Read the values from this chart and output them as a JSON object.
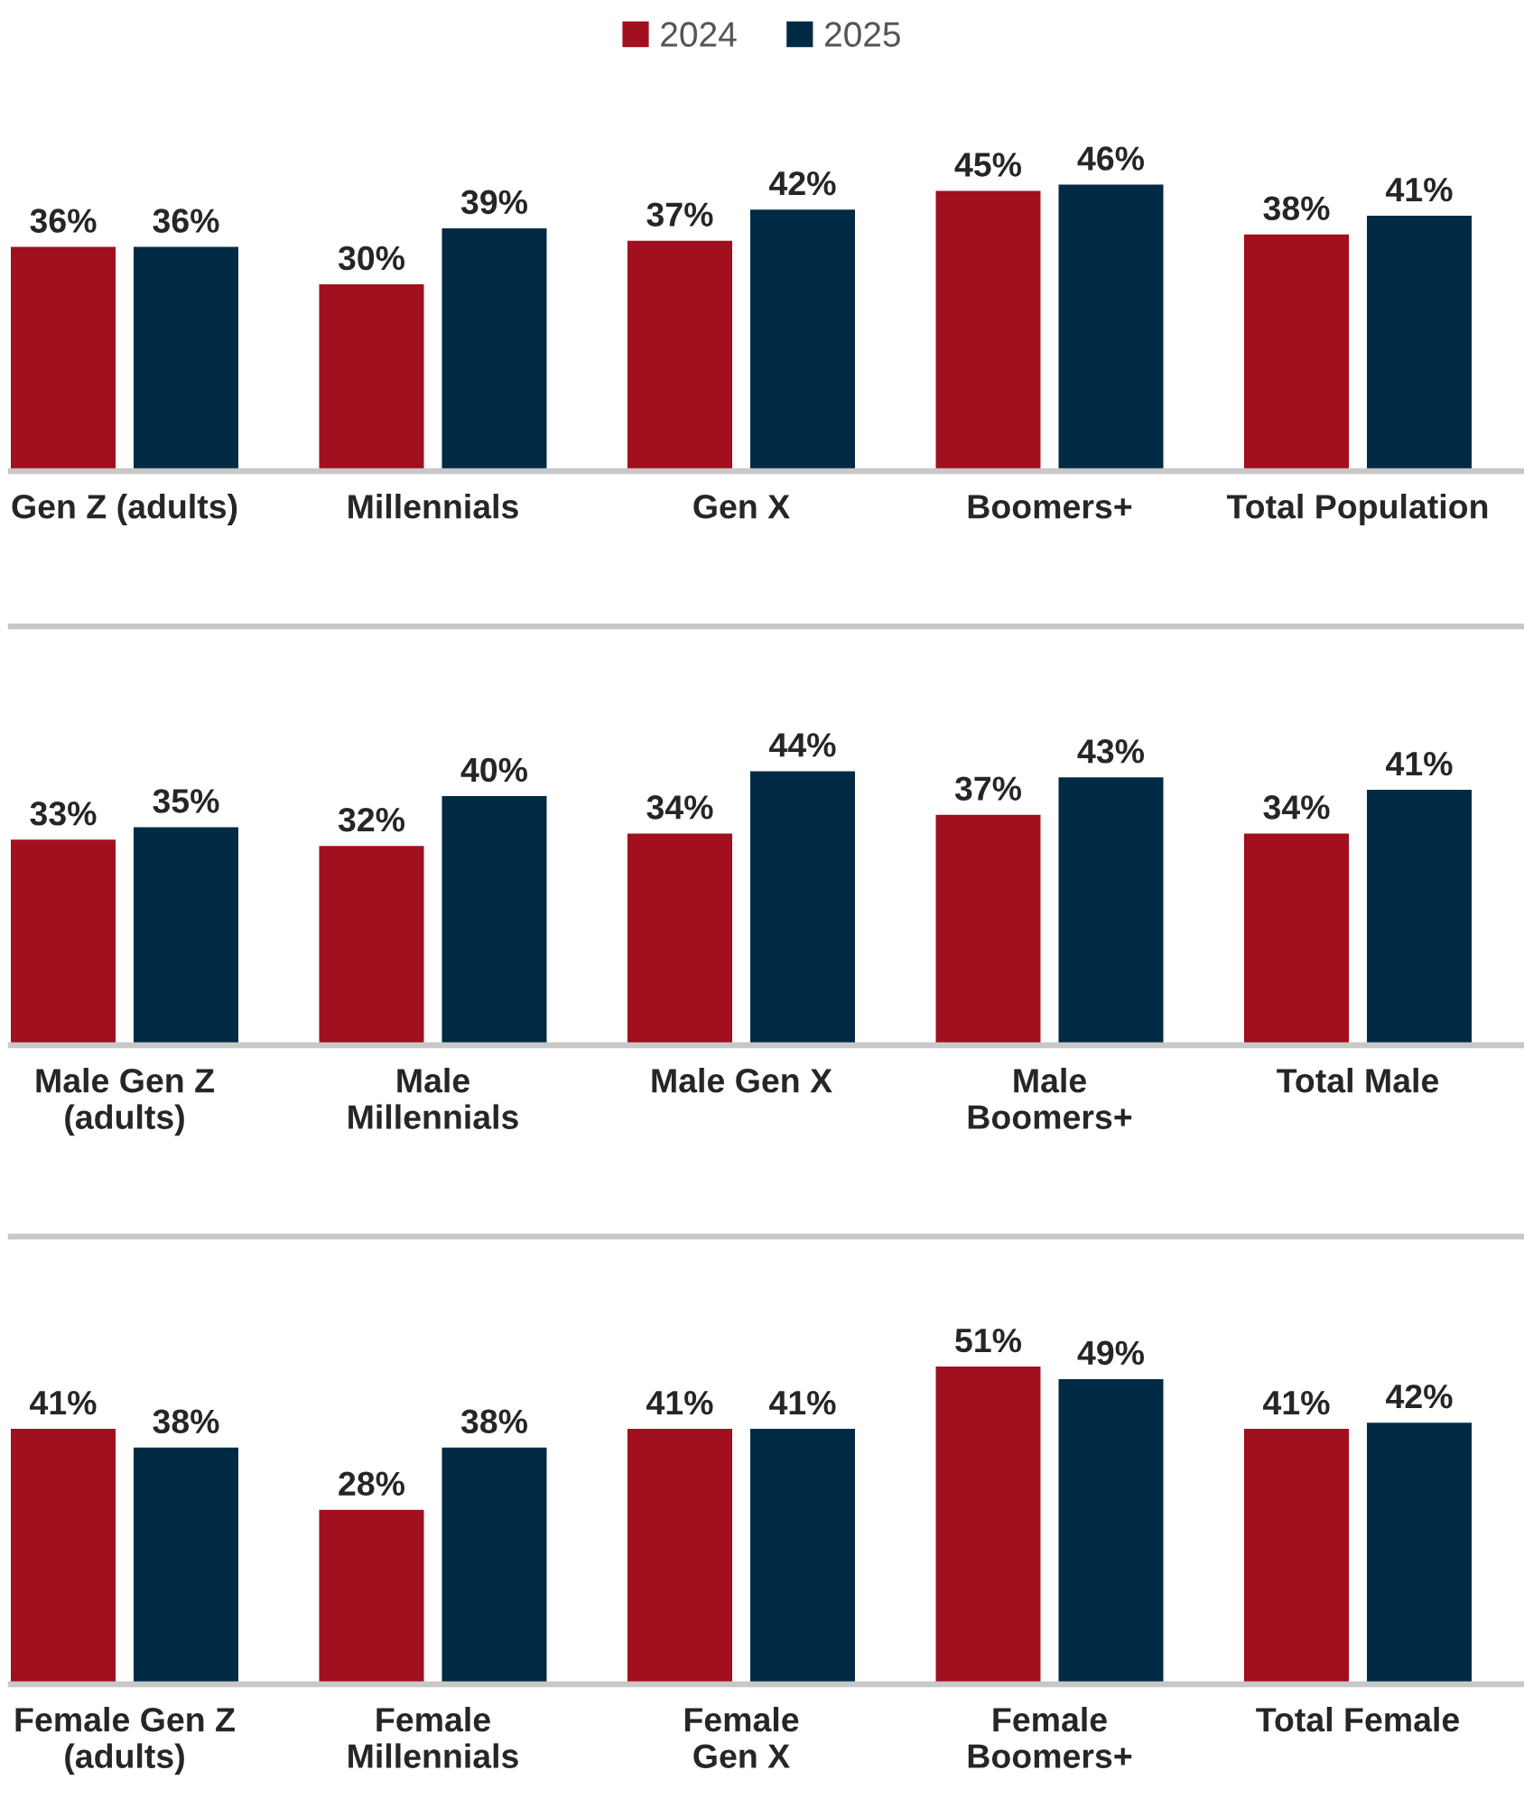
{
  "chart_data": [
    {
      "type": "bar",
      "categories": [
        "Gen Z (adults)",
        "Millennials",
        "Gen X",
        "Boomers+",
        "Total Population"
      ],
      "series": [
        {
          "name": "2024",
          "color": "#a20f1e",
          "values": [
            36,
            30,
            37,
            45,
            38
          ],
          "value_labels": [
            "36%",
            "30%",
            "37%",
            "45%",
            "38%"
          ]
        },
        {
          "name": "2025",
          "color": "#012a45",
          "values": [
            36,
            39,
            42,
            46,
            41
          ],
          "value_labels": [
            "36%",
            "39%",
            "42%",
            "46%",
            "41%"
          ]
        }
      ],
      "legend": "top",
      "tick_labels": "x"
    },
    {
      "type": "bar",
      "categories": [
        "Male Gen Z\n(adults)",
        "Male\nMillennials",
        "Male Gen X",
        "Male\nBoomers+",
        "Total Male"
      ],
      "series": [
        {
          "color": "#a20f1e",
          "values": [
            33,
            32,
            34,
            37,
            34
          ],
          "value_labels": [
            "33%",
            "32%",
            "34%",
            "37%",
            "34%"
          ]
        },
        {
          "color": "#012a45",
          "values": [
            35,
            40,
            44,
            43,
            41
          ],
          "value_labels": [
            "35%",
            "40%",
            "44%",
            "43%",
            "41%"
          ]
        }
      ],
      "tick_labels": "x"
    },
    {
      "type": "bar",
      "categories": [
        "Female Gen Z\n(adults)",
        "Female\nMillennials",
        "Female\nGen X",
        "Female\nBoomers+",
        "Total Female"
      ],
      "series": [
        {
          "color": "#a20f1e",
          "values": [
            41,
            28,
            41,
            51,
            41
          ],
          "value_labels": [
            "41%",
            "28%",
            "41%",
            "51%",
            "41%"
          ]
        },
        {
          "color": "#012a45",
          "values": [
            38,
            38,
            41,
            49,
            42
          ],
          "value_labels": [
            "38%",
            "38%",
            "41%",
            "49%",
            "42%"
          ]
        }
      ],
      "tick_labels": "x"
    }
  ]
}
